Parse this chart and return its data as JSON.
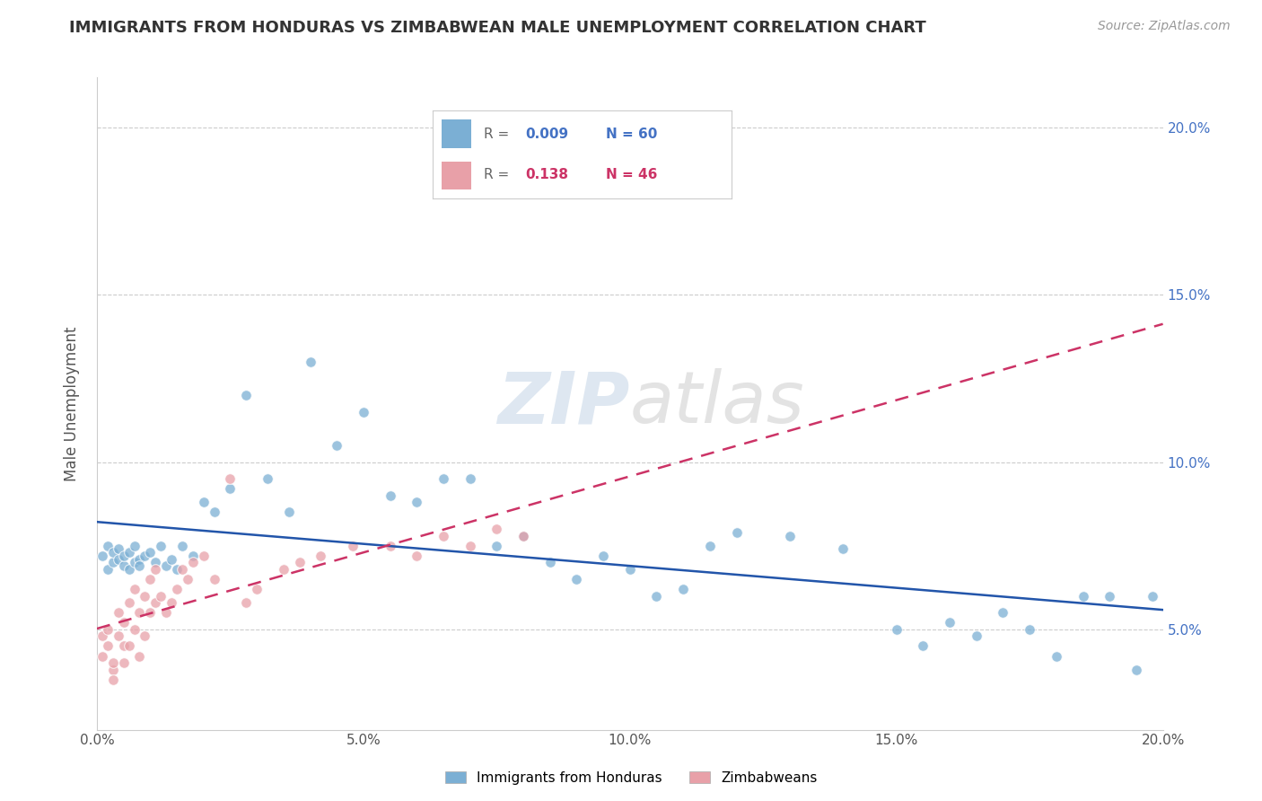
{
  "title": "IMMIGRANTS FROM HONDURAS VS ZIMBABWEAN MALE UNEMPLOYMENT CORRELATION CHART",
  "source": "Source: ZipAtlas.com",
  "ylabel": "Male Unemployment",
  "xlim": [
    0.0,
    0.2
  ],
  "ylim": [
    0.02,
    0.215
  ],
  "yticks": [
    0.05,
    0.1,
    0.15,
    0.2
  ],
  "ytick_labels": [
    "5.0%",
    "10.0%",
    "15.0%",
    "20.0%"
  ],
  "xticks": [
    0.0,
    0.05,
    0.1,
    0.15,
    0.2
  ],
  "xtick_labels": [
    "0.0%",
    "5.0%",
    "10.0%",
    "15.0%",
    "20.0%"
  ],
  "legend_labels": [
    "Immigrants from Honduras",
    "Zimbabweans"
  ],
  "blue_R": "0.009",
  "blue_N": "60",
  "pink_R": "0.138",
  "pink_N": "46",
  "blue_color": "#7bafd4",
  "pink_color": "#e8a0a8",
  "blue_line_color": "#2255aa",
  "pink_line_color": "#cc3366",
  "blue_scatter_x": [
    0.001,
    0.002,
    0.002,
    0.003,
    0.003,
    0.004,
    0.004,
    0.005,
    0.005,
    0.006,
    0.006,
    0.007,
    0.007,
    0.008,
    0.008,
    0.009,
    0.01,
    0.011,
    0.012,
    0.013,
    0.014,
    0.015,
    0.016,
    0.018,
    0.02,
    0.022,
    0.025,
    0.028,
    0.032,
    0.036,
    0.04,
    0.045,
    0.05,
    0.055,
    0.06,
    0.065,
    0.07,
    0.075,
    0.08,
    0.085,
    0.09,
    0.095,
    0.1,
    0.105,
    0.11,
    0.115,
    0.12,
    0.13,
    0.14,
    0.15,
    0.155,
    0.16,
    0.165,
    0.17,
    0.175,
    0.18,
    0.185,
    0.19,
    0.195,
    0.198
  ],
  "blue_scatter_y": [
    0.072,
    0.068,
    0.075,
    0.07,
    0.073,
    0.071,
    0.074,
    0.069,
    0.072,
    0.068,
    0.073,
    0.07,
    0.075,
    0.071,
    0.069,
    0.072,
    0.073,
    0.07,
    0.075,
    0.069,
    0.071,
    0.068,
    0.075,
    0.072,
    0.088,
    0.085,
    0.092,
    0.12,
    0.095,
    0.085,
    0.13,
    0.105,
    0.115,
    0.09,
    0.088,
    0.095,
    0.095,
    0.075,
    0.078,
    0.07,
    0.065,
    0.072,
    0.068,
    0.06,
    0.062,
    0.075,
    0.079,
    0.078,
    0.074,
    0.05,
    0.045,
    0.052,
    0.048,
    0.055,
    0.05,
    0.042,
    0.06,
    0.06,
    0.038,
    0.06
  ],
  "pink_scatter_x": [
    0.001,
    0.001,
    0.002,
    0.002,
    0.003,
    0.003,
    0.003,
    0.004,
    0.004,
    0.005,
    0.005,
    0.005,
    0.006,
    0.006,
    0.007,
    0.007,
    0.008,
    0.008,
    0.009,
    0.009,
    0.01,
    0.01,
    0.011,
    0.011,
    0.012,
    0.013,
    0.014,
    0.015,
    0.016,
    0.017,
    0.018,
    0.02,
    0.022,
    0.025,
    0.028,
    0.03,
    0.035,
    0.038,
    0.042,
    0.048,
    0.055,
    0.06,
    0.065,
    0.07,
    0.075,
    0.08
  ],
  "pink_scatter_y": [
    0.048,
    0.042,
    0.05,
    0.045,
    0.038,
    0.04,
    0.035,
    0.055,
    0.048,
    0.052,
    0.045,
    0.04,
    0.058,
    0.045,
    0.062,
    0.05,
    0.055,
    0.042,
    0.06,
    0.048,
    0.065,
    0.055,
    0.068,
    0.058,
    0.06,
    0.055,
    0.058,
    0.062,
    0.068,
    0.065,
    0.07,
    0.072,
    0.065,
    0.095,
    0.058,
    0.062,
    0.068,
    0.07,
    0.072,
    0.075,
    0.075,
    0.072,
    0.078,
    0.075,
    0.08,
    0.078
  ]
}
